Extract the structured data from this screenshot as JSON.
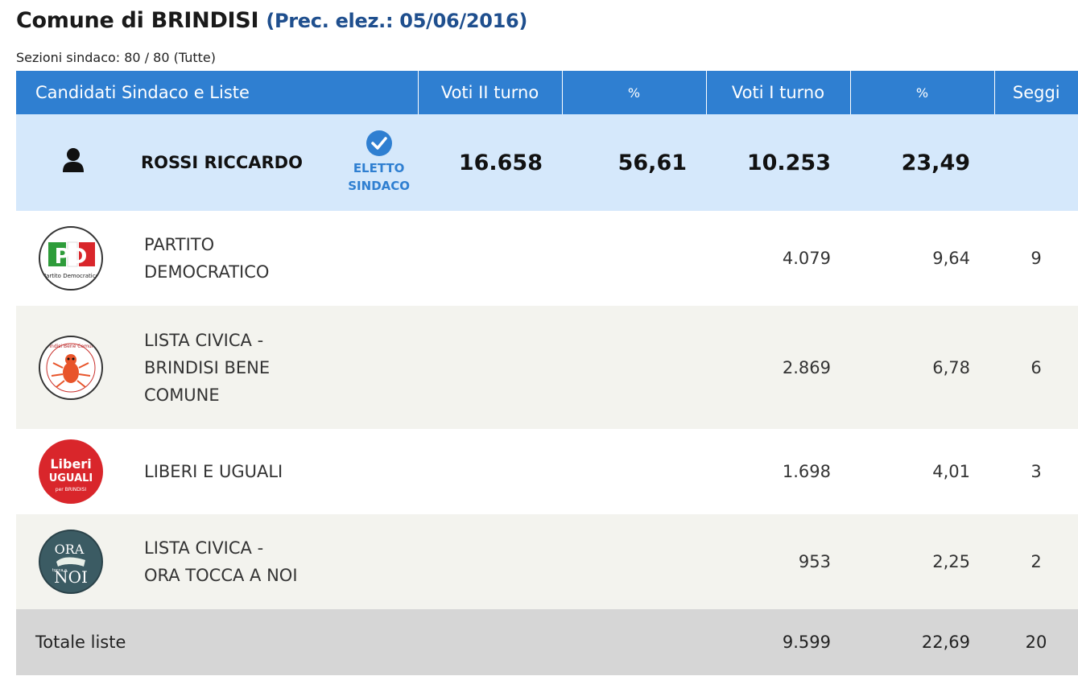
{
  "header": {
    "title": "Comune di BRINDISI",
    "prev_election": "(Prec. elez.: 05/06/2016)",
    "sections": "Sezioni sindaco: 80 / 80 (Tutte)"
  },
  "columns": {
    "candidates": "Candidati Sindaco e Liste",
    "votes_round2": "Voti II turno",
    "pct_round2": "%",
    "votes_round1": "Voti I turno",
    "pct_round1": "%",
    "seats": "Seggi"
  },
  "candidate": {
    "name": "ROSSI RICCARDO",
    "status_line1": "ELETTO",
    "status_line2": "SINDACO",
    "votes_round2": "16.658",
    "pct_round2": "56,61",
    "votes_round1": "10.253",
    "pct_round1": "23,49",
    "icon": "person-icon"
  },
  "lists": [
    {
      "name_line1": "PARTITO",
      "name_line2": "DEMOCRATICO",
      "name_line3": "",
      "votes": "4.079",
      "pct": "9,64",
      "seats": "9",
      "logo": "pd-logo",
      "logo_text": "PD",
      "logo_caption": "Partito Democratico"
    },
    {
      "name_line1": "LISTA CIVICA -",
      "name_line2": "BRINDISI BENE",
      "name_line3": "COMUNE",
      "votes": "2.869",
      "pct": "6,78",
      "seats": "6",
      "logo": "brindisi-bene-comune-logo",
      "logo_text": "Brindisi Bene Comune"
    },
    {
      "name_line1": "LIBERI E UGUALI",
      "name_line2": "",
      "name_line3": "",
      "votes": "1.698",
      "pct": "4,01",
      "seats": "3",
      "logo": "liberi-uguali-logo",
      "logo_text_1": "Liberi",
      "logo_text_2": "UGUALI",
      "logo_caption": "per BRINDISI"
    },
    {
      "name_line1": "LISTA CIVICA -",
      "name_line2": "ORA TOCCA A NOI",
      "name_line3": "",
      "votes": "953",
      "pct": "2,25",
      "seats": "2",
      "logo": "ora-tocca-a-noi-logo",
      "logo_text_1": "ORA",
      "logo_text_2": "NOI",
      "logo_caption": "tocca a"
    }
  ],
  "totals": {
    "label": "Totale liste",
    "votes": "9.599",
    "pct": "22,69",
    "seats": "20"
  },
  "colors": {
    "header_blue": "#2f7fd1",
    "candidate_bg": "#d5e8fb",
    "title_blue": "#1f4f8e",
    "total_bg": "#d6d6d6"
  }
}
